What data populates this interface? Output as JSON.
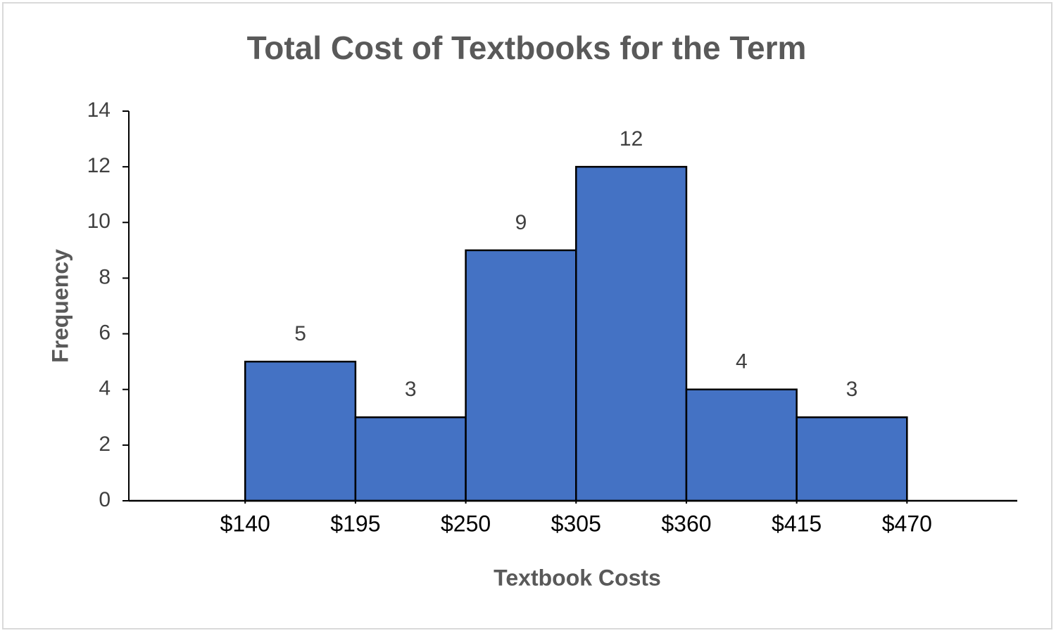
{
  "chart_data": {
    "type": "histogram",
    "title": "Total Cost of Textbooks for the Term",
    "x_label": "Textbook Costs",
    "y_label": "Frequency",
    "bins": [
      140,
      195,
      250,
      305,
      360,
      415,
      470
    ],
    "counts": [
      5,
      3,
      9,
      12,
      4,
      3
    ],
    "color": "#4472c4",
    "xlim": [
      82,
      525
    ],
    "xticks": [
      {
        "value": 140,
        "label": "$140"
      },
      {
        "value": 195,
        "label": "$195"
      },
      {
        "value": 250,
        "label": "$250"
      },
      {
        "value": 305,
        "label": "$305"
      },
      {
        "value": 360,
        "label": "$360"
      },
      {
        "value": 415,
        "label": "$415"
      },
      {
        "value": 470,
        "label": "$470"
      }
    ],
    "ylim": [
      0,
      14
    ],
    "yticks": [
      0,
      2,
      4,
      6,
      8,
      10,
      12,
      14
    ],
    "grid": false
  }
}
